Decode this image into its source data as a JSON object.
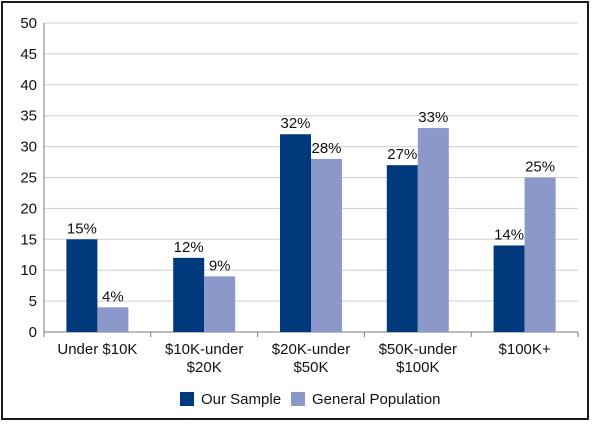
{
  "chart_data": {
    "type": "bar",
    "categories": [
      [
        "Under $10K"
      ],
      [
        "$10K-under",
        "$20K"
      ],
      [
        "$20K-under",
        "$50K"
      ],
      [
        "$50K-under",
        "$100K"
      ],
      [
        "$100K+"
      ]
    ],
    "series": [
      {
        "name": "Our Sample",
        "color": "#003A7D",
        "values": [
          15,
          12,
          32,
          27,
          14
        ],
        "labels": [
          "15%",
          "12%",
          "32%",
          "27%",
          "14%"
        ]
      },
      {
        "name": "General Population",
        "color": "#8B98C9",
        "values": [
          4,
          9,
          28,
          33,
          25
        ],
        "labels": [
          "4%",
          "9%",
          "28%",
          "33%",
          "25%"
        ]
      }
    ],
    "ylim": [
      0,
      50
    ],
    "yticks": [
      0,
      5,
      10,
      15,
      20,
      25,
      30,
      35,
      40,
      45,
      50
    ],
    "grid": true,
    "legend_position": "bottom",
    "title": "",
    "xlabel": "",
    "ylabel": ""
  }
}
